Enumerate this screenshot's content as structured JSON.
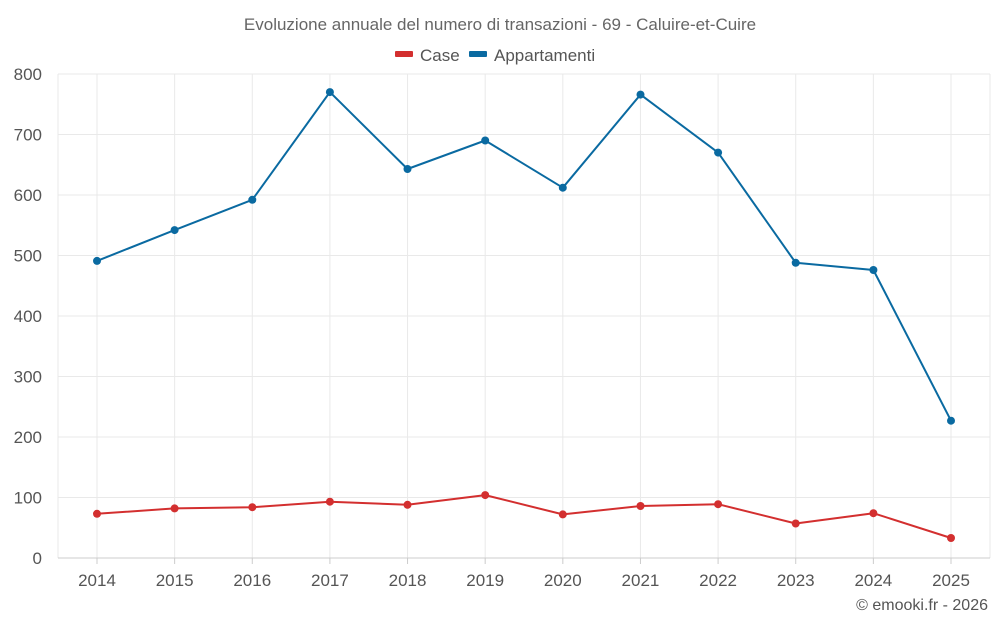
{
  "chart_data": {
    "type": "line",
    "title": "Evoluzione annuale del numero di transazioni - 69 - Caluire-et-Cuire",
    "categories": [
      "2014",
      "2015",
      "2016",
      "2017",
      "2018",
      "2019",
      "2020",
      "2021",
      "2022",
      "2023",
      "2024",
      "2025"
    ],
    "series": [
      {
        "name": "Case",
        "color": "#d32f2f",
        "values": [
          73,
          82,
          84,
          93,
          88,
          104,
          72,
          86,
          89,
          57,
          74,
          33
        ]
      },
      {
        "name": "Appartamenti",
        "color": "#0a6aa1",
        "values": [
          491,
          542,
          592,
          770,
          643,
          690,
          612,
          766,
          670,
          488,
          476,
          227
        ]
      }
    ],
    "yticks": [
      "0",
      "100",
      "200",
      "300",
      "400",
      "500",
      "600",
      "700",
      "800"
    ],
    "ylim": [
      0,
      800
    ],
    "xlabel": "",
    "ylabel": "",
    "grid": true,
    "legend_position": "top-center"
  },
  "credit": "© emooki.fr - 2026"
}
